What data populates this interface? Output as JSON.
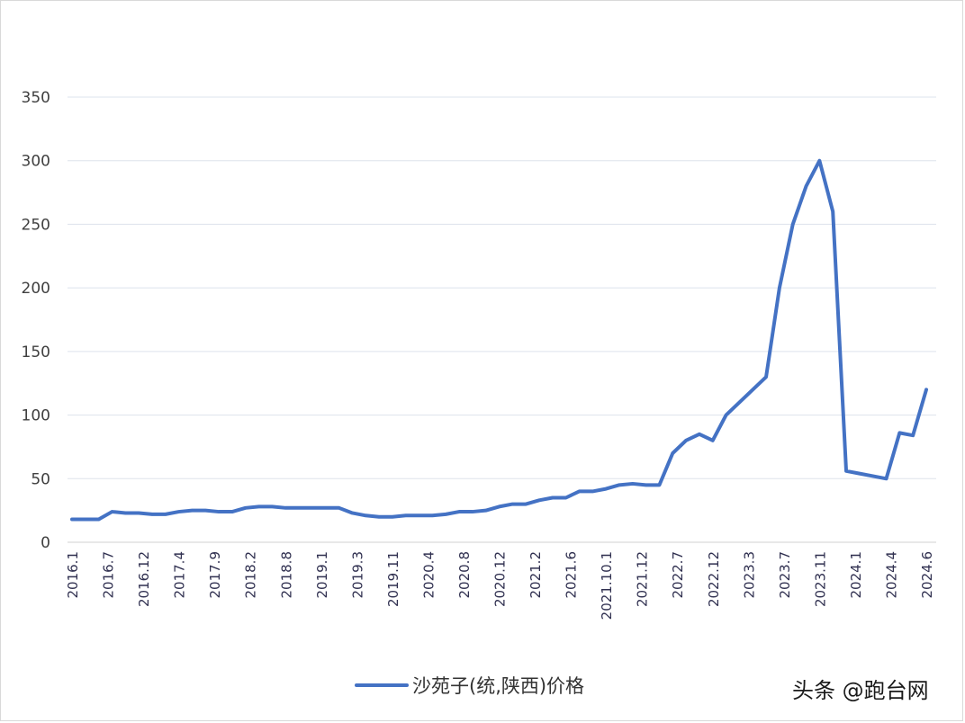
{
  "chart_data": {
    "type": "line",
    "ylim": [
      0,
      350
    ],
    "yticks": [
      0,
      50,
      100,
      150,
      200,
      250,
      300,
      350
    ],
    "grid": true,
    "legend_position": "bottom",
    "xtick_labels": [
      "2016.1",
      "2016.7",
      "2016.12",
      "2017.4",
      "2017.9",
      "2018.2",
      "2018.8",
      "2019.1",
      "2019.3",
      "2019.11",
      "2020.4",
      "2020.8",
      "2020.12",
      "2021.2",
      "2021.6",
      "2021.10.1",
      "2021.12",
      "2022.7",
      "2022.12",
      "2023.3",
      "2023.7",
      "2023.11",
      "2024.1",
      "2024.4",
      "2024.6"
    ],
    "series": [
      {
        "name": "沙苑子(统,陕西)价格",
        "color": "#4472c4",
        "values": [
          18,
          18,
          18,
          24,
          23,
          23,
          22,
          22,
          24,
          25,
          25,
          24,
          24,
          27,
          28,
          28,
          27,
          27,
          27,
          27,
          27,
          23,
          21,
          20,
          20,
          21,
          21,
          21,
          22,
          24,
          24,
          25,
          28,
          30,
          30,
          33,
          35,
          35,
          40,
          40,
          42,
          45,
          46,
          45,
          45,
          70,
          80,
          85,
          80,
          100,
          110,
          120,
          130,
          200,
          250,
          280,
          300,
          260,
          56,
          54,
          52,
          50,
          86,
          84,
          120
        ]
      }
    ]
  },
  "watermark": "头条 @跑台网"
}
